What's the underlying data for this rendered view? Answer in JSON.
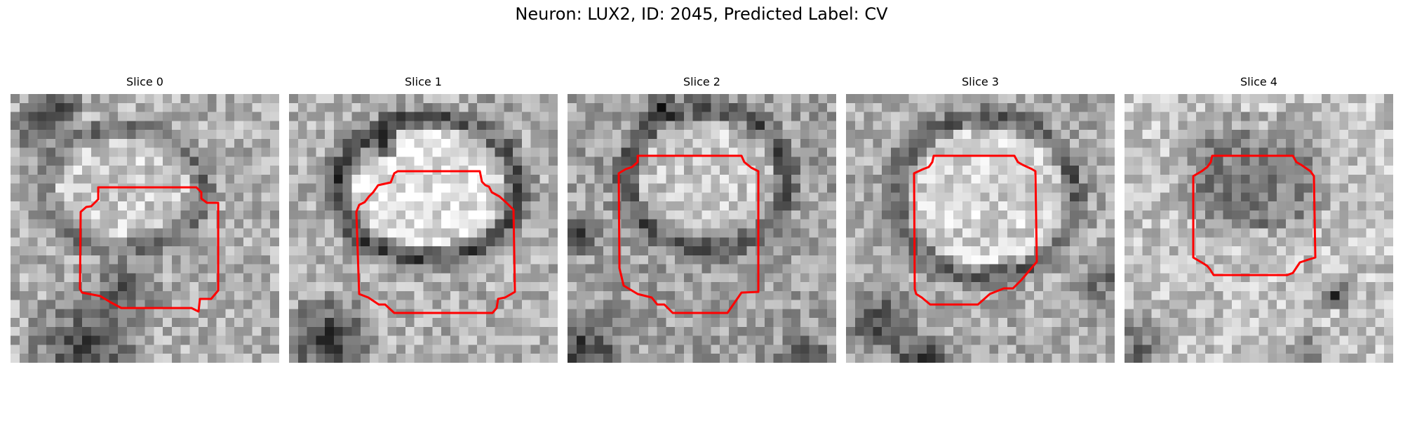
{
  "figure": {
    "title": "Neuron: LUX2, ID: 2045, Predicted Label: CV",
    "contour_color": "#ff0000",
    "colormap": "gray"
  },
  "slices": [
    {
      "title": "Slice 0"
    },
    {
      "title": "Slice 1"
    },
    {
      "title": "Slice 2"
    },
    {
      "title": "Slice 3"
    },
    {
      "title": "Slice 4"
    }
  ]
}
